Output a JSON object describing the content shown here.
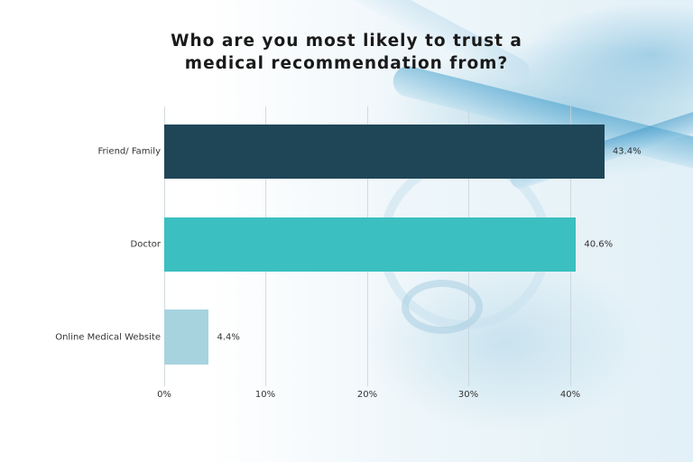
{
  "title_line1": "Who are you most likely to trust a",
  "title_line2": "medical recommendation from?",
  "colors": {
    "friend_family": "#1f4657",
    "doctor": "#3bbfc0",
    "online": "#a7d3df",
    "grid": "#d2dadd",
    "text": "#333333"
  },
  "axis": {
    "ticks": [
      "0%",
      "10%",
      "20%",
      "30%",
      "40%"
    ]
  },
  "bars": [
    {
      "label": "Friend/ Family",
      "value": 43.4,
      "value_label": "43.4%"
    },
    {
      "label": "Doctor",
      "value": 40.6,
      "value_label": "40.6%"
    },
    {
      "label": "Online Medical Website",
      "value": 4.4,
      "value_label": "4.4%"
    }
  ],
  "chart_data": {
    "type": "bar",
    "orientation": "horizontal",
    "title": "Who are you most likely to trust a medical recommendation from?",
    "categories": [
      "Friend/ Family",
      "Doctor",
      "Online Medical Website"
    ],
    "values": [
      43.4,
      40.6,
      4.4
    ],
    "value_labels": [
      "43.4%",
      "40.6%",
      "4.4%"
    ],
    "xlabel": "",
    "ylabel": "",
    "xlim": [
      0,
      45
    ],
    "x_ticks": [
      "0%",
      "10%",
      "20%",
      "30%",
      "40%"
    ],
    "grid": true,
    "legend": "none",
    "bar_colors": [
      "#1f4657",
      "#3bbfc0",
      "#a7d3df"
    ]
  }
}
